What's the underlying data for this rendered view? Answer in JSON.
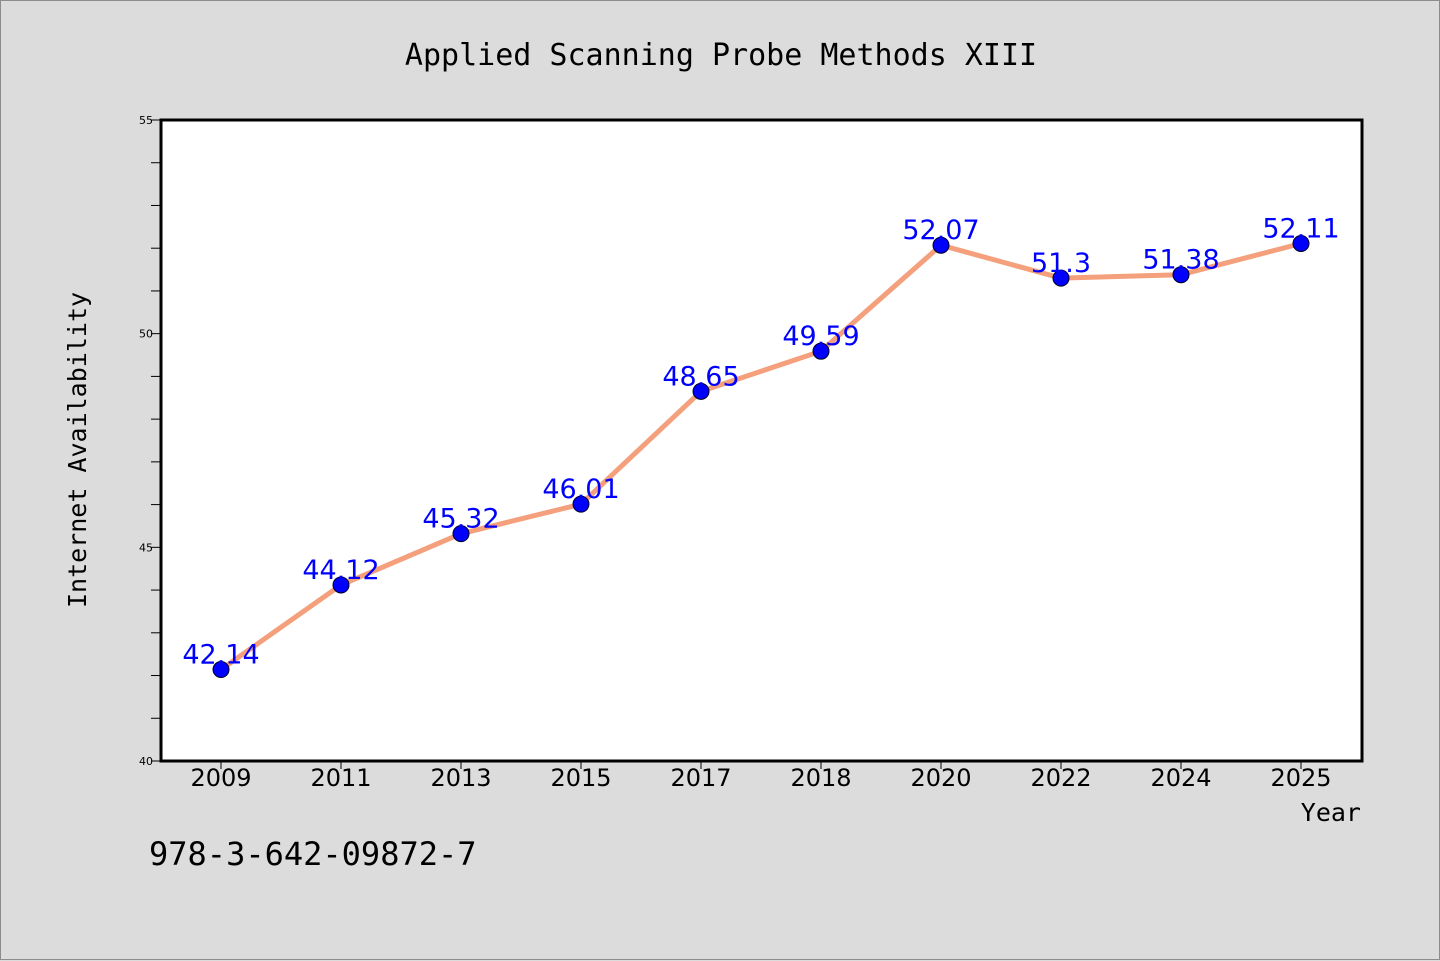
{
  "chart_data": {
    "type": "line",
    "title": "Applied Scanning Probe Methods XIII",
    "xlabel": "Year",
    "ylabel": "Internet Availability",
    "categories": [
      "2009",
      "2011",
      "2013",
      "2015",
      "2017",
      "2018",
      "2020",
      "2022",
      "2024",
      "2025"
    ],
    "series": [
      {
        "values": [
          42.14,
          44.12,
          45.32,
          46.01,
          48.65,
          49.59,
          52.07,
          51.3,
          51.38,
          52.11
        ],
        "labels": [
          "42.14",
          "44.12",
          "45.32",
          "46.01",
          "48.65",
          "49.59",
          "52.07",
          "51.3",
          "51.38",
          "52.11"
        ],
        "line_color": "#f4a07c",
        "marker_color": "#0000ff",
        "label_color": "#0000ff"
      }
    ],
    "ylim": [
      40,
      55
    ],
    "yticks": [
      "40",
      "45",
      "50",
      "55"
    ],
    "grid": false,
    "legend": "none"
  },
  "footer": {
    "isbn": "978-3-642-09872-7"
  },
  "colors": {
    "background": "#dcdcdc",
    "plot_area": "#ffffff",
    "axis": "#000000"
  }
}
